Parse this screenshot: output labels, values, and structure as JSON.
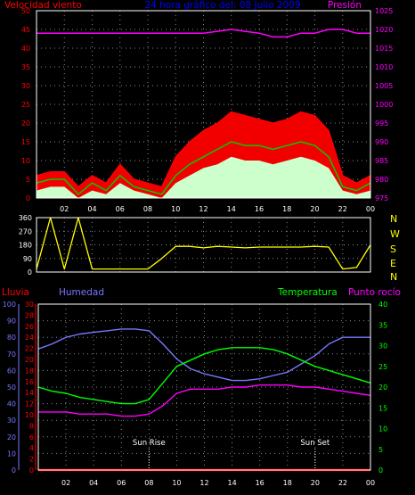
{
  "header": {
    "wind_label": "Velocidad viento",
    "title": "24 hora gráfico del: 08 Julio 2009",
    "pressure_label": "Presión"
  },
  "rain_label": "Lluvia",
  "humidity_label": "Humedad",
  "temperature_label": "Temperatura",
  "dewpoint_label": "Punto rocío",
  "sunrise_label": "Sun Rise",
  "sunset_label": "Sun Set",
  "direction_letters": [
    "N",
    "W",
    "S",
    "E",
    "N"
  ],
  "colors": {
    "wind_gust": "#ff0000",
    "wind_avg": "#00cc00",
    "wind_fill": "#ccffcc",
    "pressure": "#ff00ff",
    "direction": "#ffff00",
    "humidity": "#7777ff",
    "temperature": "#00ff00",
    "dewpoint": "#ff00ff",
    "rain": "#ff0000",
    "grid": "#888888",
    "title": "#0000ff",
    "axis_text": "#ffffff"
  },
  "chart_data": [
    {
      "type": "line",
      "title": "24 hora gráfico del: 08 Julio 2009",
      "x_ticks": [
        "02",
        "04",
        "06",
        "08",
        "10",
        "12",
        "14",
        "16",
        "18",
        "20",
        "22",
        "00"
      ],
      "x_range_hours": [
        0,
        24
      ],
      "ylim_left": [
        0,
        50
      ],
      "yticks_left": [
        "0",
        "5",
        "10",
        "15",
        "20",
        "25",
        "30",
        "35",
        "40",
        "45",
        "50"
      ],
      "ylabel_left": "Velocidad viento",
      "ylim_right": [
        975,
        1025
      ],
      "yticks_right": [
        "975",
        "980",
        "985",
        "990",
        "995",
        "1000",
        "1005",
        "1010",
        "1015",
        "1020",
        "1025"
      ],
      "ylabel_right": "Presión",
      "grid": true,
      "hours": [
        0,
        1,
        2,
        3,
        4,
        5,
        6,
        7,
        8,
        9,
        10,
        11,
        12,
        13,
        14,
        15,
        16,
        17,
        18,
        19,
        20,
        21,
        22,
        23,
        24
      ],
      "series": [
        {
          "name": "Velocidad viento",
          "axis": "left",
          "values": [
            6,
            7,
            7,
            3,
            6,
            4,
            9,
            5,
            4,
            3,
            11,
            15,
            18,
            20,
            23,
            22,
            21,
            20,
            21,
            23,
            22,
            18,
            6,
            4,
            6
          ]
        },
        {
          "axis": "left",
          "values": [
            4,
            5,
            5,
            1,
            4,
            2,
            6,
            3,
            2,
            1,
            6,
            9,
            11,
            13,
            15,
            14,
            14,
            13,
            14,
            15,
            14,
            11,
            3,
            2,
            4
          ]
        },
        {
          "axis": "left",
          "values": [
            2,
            3,
            3,
            0,
            2,
            1,
            4,
            2,
            1,
            0,
            4,
            6,
            8,
            9,
            11,
            10,
            10,
            9,
            10,
            11,
            10,
            8,
            2,
            1,
            2
          ]
        },
        {
          "name": "Presión",
          "axis": "right",
          "values": [
            1019,
            1019,
            1019,
            1019,
            1019,
            1019,
            1019,
            1019,
            1019,
            1019,
            1019,
            1019,
            1019,
            1019.5,
            1020,
            1019.5,
            1019,
            1018,
            1018,
            1019,
            1019,
            1020,
            1020,
            1019,
            1019
          ]
        }
      ]
    },
    {
      "type": "line",
      "x_ticks": [
        "02",
        "04",
        "06",
        "08",
        "10",
        "12",
        "14",
        "16",
        "18",
        "20",
        "22",
        "00"
      ],
      "x_range_hours": [
        0,
        24
      ],
      "ylim": [
        0,
        360
      ],
      "yticks": [
        "0",
        "90",
        "180",
        "270",
        "360"
      ],
      "grid": true,
      "hours": [
        0,
        1,
        2,
        3,
        4,
        5,
        6,
        7,
        8,
        9,
        10,
        11,
        12,
        13,
        14,
        15,
        16,
        17,
        18,
        19,
        20,
        21,
        22,
        23,
        24
      ],
      "series": [
        {
          "axis": "left",
          "values": [
            20,
            360,
            20,
            360,
            20,
            20,
            20,
            20,
            20,
            90,
            170,
            170,
            160,
            170,
            165,
            160,
            165,
            165,
            165,
            165,
            170,
            165,
            20,
            30,
            180
          ]
        }
      ]
    },
    {
      "type": "line",
      "x_ticks": [
        "02",
        "04",
        "06",
        "08",
        "10",
        "12",
        "14",
        "16",
        "18",
        "20",
        "22",
        "00"
      ],
      "x_range_hours": [
        0,
        24
      ],
      "ylim_rain": [
        0,
        30
      ],
      "yticks_rain": [
        "0",
        "2",
        "4",
        "6",
        "8",
        "10",
        "12",
        "14",
        "16",
        "18",
        "20",
        "22",
        "24",
        "26",
        "28",
        "30"
      ],
      "ylabel_rain": "Lluvia",
      "ylim_humidity": [
        0,
        100
      ],
      "yticks_humidity": [
        "0",
        "10",
        "20",
        "30",
        "40",
        "50",
        "60",
        "70",
        "80",
        "90",
        "100"
      ],
      "ylabel_humidity": "Humedad",
      "ylim_temperature": [
        0,
        40
      ],
      "yticks_temperature": [
        "0",
        "5",
        "10",
        "15",
        "20",
        "25",
        "30",
        "35",
        "40"
      ],
      "ylabel_temperature": "Temperatura",
      "grid": true,
      "sun_rise_hour": 8,
      "sun_set_hour": 20,
      "hours": [
        0,
        1,
        2,
        3,
        4,
        5,
        6,
        7,
        8,
        9,
        10,
        11,
        12,
        13,
        14,
        15,
        16,
        17,
        18,
        19,
        20,
        21,
        22,
        23,
        24
      ],
      "series": [
        {
          "name": "Lluvia",
          "axis": "rain",
          "values": [
            0,
            0,
            0,
            0,
            0,
            0,
            0,
            0,
            0,
            0,
            0,
            0,
            0,
            0,
            0,
            0,
            0,
            0,
            0,
            0,
            0,
            0,
            0,
            0,
            0
          ]
        },
        {
          "name": "Humedad",
          "axis": "humidity",
          "values": [
            73,
            76,
            80,
            82,
            83,
            84,
            85,
            85,
            84,
            76,
            67,
            61,
            58,
            56,
            54,
            54,
            55,
            57,
            59,
            64,
            69,
            76,
            80,
            80,
            80
          ]
        },
        {
          "name": "Temperatura",
          "axis": "temperature",
          "values": [
            20,
            19,
            18.5,
            17.5,
            17,
            16.5,
            16,
            16,
            17,
            21,
            25,
            26.5,
            28,
            29,
            29.5,
            29.5,
            29.5,
            29,
            28,
            26.5,
            25,
            24,
            23,
            22,
            21
          ]
        },
        {
          "name": "Punto rocío",
          "axis": "temperature",
          "values": [
            14,
            14,
            14,
            13.5,
            13.5,
            13.5,
            13,
            13,
            13.5,
            15.5,
            18.5,
            19.5,
            19.5,
            19.5,
            20,
            20,
            20.5,
            20.5,
            20.5,
            20,
            20,
            19.5,
            19,
            18.5,
            18
          ]
        }
      ]
    }
  ]
}
